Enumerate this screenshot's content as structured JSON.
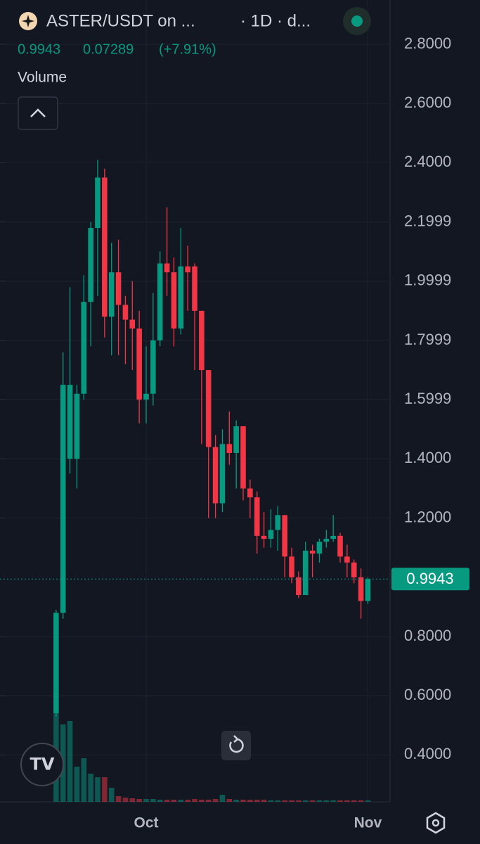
{
  "chart_data": {
    "type": "candlestick",
    "title": "ASTER/USDT on ...",
    "interval": "· 1D · d...",
    "change": 0.07289,
    "change_percent": {
      "value": 7.91,
      "label": "(+7.91%)"
    },
    "volume_label": "Volume",
    "up_color": "#089981",
    "down_color": "#f23645",
    "grid": true,
    "ylim": [
      0.2418,
      2.9496
    ],
    "yticks": [
      {
        "value": 2.8,
        "label": "2.8000"
      },
      {
        "value": 2.6,
        "label": "2.6000"
      },
      {
        "value": 2.4,
        "label": "2.4000"
      },
      2.1999,
      1.9999,
      1.7999,
      1.5999,
      {
        "value": 1.4,
        "label": "1.4000"
      },
      {
        "value": 1.2,
        "label": "1.2000"
      },
      {
        "value": 0.8,
        "label": "0.8000"
      },
      {
        "value": 0.6,
        "label": "0.6000"
      },
      {
        "value": 0.4,
        "label": "0.4000"
      }
    ],
    "xlim": [
      -8.1,
      48.2
    ],
    "xticks": [
      {
        "value": 13,
        "label": "Oct"
      },
      {
        "value": 45,
        "label": "Nov"
      }
    ],
    "open": [
      0.54,
      0.88,
      1.4,
      1.4,
      1.62,
      1.93,
      2.18,
      2.35,
      1.88,
      2.03,
      1.92,
      1.87,
      1.84,
      1.6,
      1.62,
      1.8,
      2.06,
      2.03,
      1.84,
      2.05,
      2.05,
      1.9,
      1.7,
      1.44,
      1.25,
      1.45,
      1.42,
      1.51,
      1.3,
      1.27,
      1.14,
      1.13,
      1.16,
      1.21,
      1.07,
      1.0,
      0.94,
      1.09,
      1.08,
      1.12,
      1.13,
      1.14,
      1.07,
      1.05,
      1.0,
      0.92
    ],
    "high": [
      0.89,
      1.76,
      1.98,
      1.65,
      2.02,
      2.2,
      2.41,
      2.38,
      2.13,
      2.14,
      1.95,
      2.0,
      1.9,
      1.78,
      1.96,
      2.1,
      2.25,
      2.08,
      2.18,
      2.12,
      2.06,
      1.9,
      1.7,
      1.48,
      1.5,
      1.56,
      1.53,
      1.51,
      1.33,
      1.29,
      1.22,
      1.23,
      1.24,
      1.21,
      1.1,
      1.02,
      1.12,
      1.11,
      1.13,
      1.16,
      1.21,
      1.15,
      1.11,
      1.06,
      1.03,
      1.0
    ],
    "low": [
      0.53,
      0.86,
      1.35,
      1.3,
      1.6,
      1.78,
      1.95,
      1.81,
      1.75,
      1.75,
      1.72,
      1.7,
      1.52,
      1.52,
      1.58,
      1.78,
      1.95,
      1.78,
      1.82,
      1.9,
      1.7,
      1.45,
      1.2,
      1.2,
      1.22,
      1.38,
      1.3,
      1.26,
      1.2,
      1.08,
      1.1,
      1.1,
      1.09,
      1.0,
      0.98,
      0.93,
      0.94,
      1.0,
      1.05,
      1.1,
      1.12,
      1.05,
      1.0,
      0.98,
      0.86,
      0.91
    ],
    "close": [
      0.88,
      1.65,
      1.65,
      1.62,
      1.93,
      2.18,
      2.35,
      1.88,
      2.03,
      1.92,
      1.87,
      1.84,
      1.6,
      1.62,
      1.8,
      2.06,
      2.03,
      1.84,
      2.05,
      2.03,
      1.9,
      1.7,
      1.44,
      1.25,
      1.45,
      1.42,
      1.51,
      1.3,
      1.27,
      1.14,
      1.13,
      1.16,
      1.21,
      1.07,
      1.0,
      0.94,
      1.09,
      1.08,
      1.12,
      1.13,
      1.14,
      1.07,
      1.05,
      1.0,
      0.92,
      0.9943
    ],
    "volume": [
      125,
      110,
      115,
      50,
      62,
      40,
      35,
      35,
      20,
      8,
      6,
      5,
      4,
      4,
      4,
      3,
      3,
      3,
      3,
      3,
      4,
      3,
      3,
      4,
      10,
      4,
      3,
      3,
      3,
      3,
      3,
      2,
      2,
      2,
      2,
      2,
      2,
      2,
      2,
      2,
      2,
      2,
      2,
      2,
      2,
      2
    ]
  }
}
